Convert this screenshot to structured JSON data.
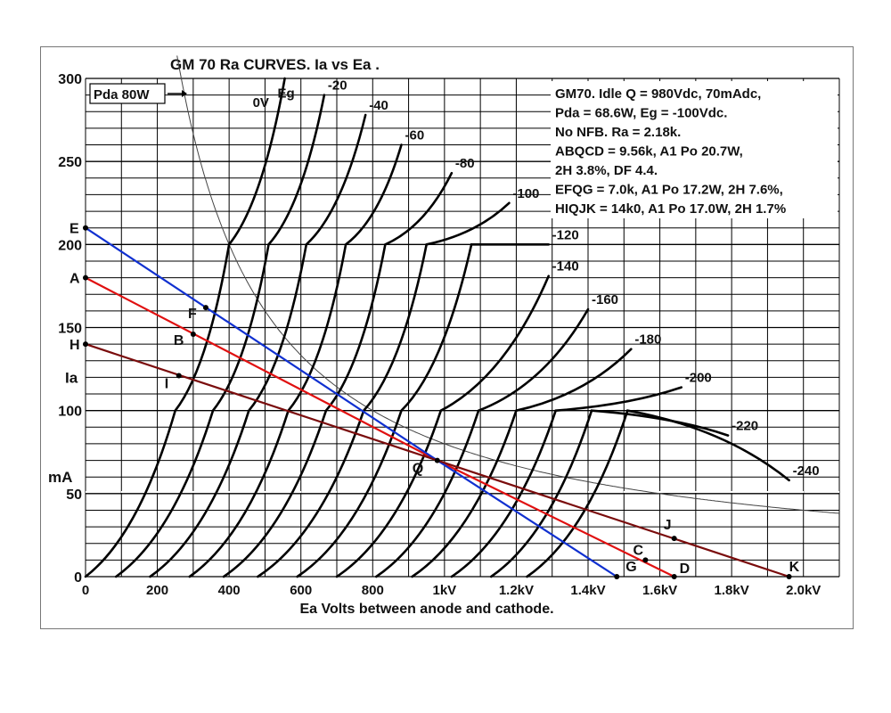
{
  "chart_data": {
    "type": "line",
    "title": "GM 70 Ra CURVES. Ia vs Ea .",
    "xlabel": "Ea Volts between anode and cathode.",
    "ylabel_parts": [
      "Ia",
      "mA"
    ],
    "xlim": [
      0,
      2100
    ],
    "ylim": [
      0,
      300
    ],
    "x_ticks": [
      {
        "v": 0,
        "label": "0"
      },
      {
        "v": 200,
        "label": "200"
      },
      {
        "v": 400,
        "label": "400"
      },
      {
        "v": 600,
        "label": "600"
      },
      {
        "v": 800,
        "label": "800"
      },
      {
        "v": 1000,
        "label": "1kV"
      },
      {
        "v": 1200,
        "label": "1.2kV"
      },
      {
        "v": 1400,
        "label": "1.4kV"
      },
      {
        "v": 1600,
        "label": "1.6kV"
      },
      {
        "v": 1800,
        "label": "1.8kV"
      },
      {
        "v": 2000,
        "label": "2.0kV"
      }
    ],
    "y_ticks": [
      {
        "v": 0,
        "label": "0"
      },
      {
        "v": 50,
        "label": "50"
      },
      {
        "v": 100,
        "label": "100"
      },
      {
        "v": 150,
        "label": "150"
      },
      {
        "v": 200,
        "label": "200"
      },
      {
        "v": 250,
        "label": "250"
      },
      {
        "v": 300,
        "label": "300"
      }
    ],
    "grid": true,
    "grid_x_step": 100,
    "grid_y_step": 10,
    "dotted_reference_y": 51,
    "grid_curves": [
      {
        "label": "0V",
        "eg": 0,
        "points": [
          [
            0,
            0
          ],
          [
            250,
            100
          ],
          [
            400,
            200
          ],
          [
            555,
            300
          ]
        ]
      },
      {
        "label": "-20",
        "eg": -20,
        "points": [
          [
            85,
            0
          ],
          [
            355,
            100
          ],
          [
            510,
            200
          ],
          [
            665,
            290
          ]
        ]
      },
      {
        "label": "-40",
        "eg": -40,
        "points": [
          [
            180,
            0
          ],
          [
            455,
            100
          ],
          [
            615,
            200
          ],
          [
            780,
            278
          ]
        ]
      },
      {
        "label": "-60",
        "eg": -60,
        "points": [
          [
            290,
            0
          ],
          [
            565,
            100
          ],
          [
            725,
            200
          ],
          [
            880,
            260
          ]
        ]
      },
      {
        "label": "-80",
        "eg": -80,
        "points": [
          [
            385,
            0
          ],
          [
            670,
            100
          ],
          [
            835,
            200
          ],
          [
            1020,
            243
          ]
        ]
      },
      {
        "label": "-100",
        "eg": -100,
        "points": [
          [
            480,
            0
          ],
          [
            775,
            100
          ],
          [
            950,
            200
          ],
          [
            1180,
            225
          ]
        ]
      },
      {
        "label": "-120",
        "eg": -120,
        "points": [
          [
            590,
            0
          ],
          [
            880,
            100
          ],
          [
            1075,
            200
          ],
          [
            1290,
            200
          ]
        ]
      },
      {
        "label": "-140",
        "eg": -140,
        "points": [
          [
            700,
            0
          ],
          [
            990,
            100
          ],
          [
            1290,
            181
          ]
        ]
      },
      {
        "label": "-160",
        "eg": -160,
        "points": [
          [
            810,
            0
          ],
          [
            1095,
            100
          ],
          [
            1400,
            161
          ]
        ]
      },
      {
        "label": "-180",
        "eg": -180,
        "points": [
          [
            910,
            0
          ],
          [
            1200,
            100
          ],
          [
            1520,
            137
          ]
        ]
      },
      {
        "label": "-200",
        "eg": -200,
        "points": [
          [
            1020,
            0
          ],
          [
            1310,
            100
          ],
          [
            1660,
            114
          ]
        ]
      },
      {
        "label": "-220",
        "eg": -220,
        "points": [
          [
            1130,
            0
          ],
          [
            1410,
            100
          ],
          [
            1790,
            85
          ]
        ]
      },
      {
        "label": "-240",
        "eg": -240,
        "points": [
          [
            1230,
            0
          ],
          [
            1510,
            100
          ],
          [
            1960,
            58
          ]
        ]
      }
    ],
    "grid_label_header": "Eg",
    "pda_curve": {
      "label": "Pda 80W",
      "watts": 80,
      "x_range": [
        255,
        2100
      ]
    },
    "load_lines": [
      {
        "name": "ABQCD",
        "color": "#e01010",
        "points": [
          [
            0,
            180
          ],
          [
            980,
            70
          ],
          [
            1640,
            0
          ]
        ],
        "start_label": "A",
        "end_label": "D"
      },
      {
        "name": "EFQG",
        "color": "#1030d0",
        "points": [
          [
            0,
            210
          ],
          [
            980,
            70
          ],
          [
            1480,
            0
          ]
        ],
        "start_label": "E",
        "end_label": "G"
      },
      {
        "name": "HIQJK",
        "color": "#7a0c0c",
        "points": [
          [
            0,
            140
          ],
          [
            980,
            70
          ],
          [
            1960,
            0
          ]
        ],
        "start_label": "H",
        "end_label": "K"
      }
    ],
    "points": [
      {
        "label": "A",
        "x": 0,
        "y": 180
      },
      {
        "label": "E",
        "x": 0,
        "y": 210
      },
      {
        "label": "H",
        "x": 0,
        "y": 140
      },
      {
        "label": "F",
        "x": 335,
        "y": 162
      },
      {
        "label": "B",
        "x": 300,
        "y": 146
      },
      {
        "label": "I",
        "x": 260,
        "y": 121
      },
      {
        "label": "Q",
        "x": 980,
        "y": 70
      },
      {
        "label": "C",
        "x": 1560,
        "y": 10
      },
      {
        "label": "G",
        "x": 1480,
        "y": 0
      },
      {
        "label": "D",
        "x": 1640,
        "y": 0
      },
      {
        "label": "J",
        "x": 1640,
        "y": 23
      },
      {
        "label": "K",
        "x": 1960,
        "y": 0
      }
    ],
    "annotations": [
      "GM70. Idle Q = 980Vdc, 70mAdc,",
      "Pda = 68.6W, Eg = -100Vdc.",
      "No NFB. Ra = 2.18k.",
      "ABQCD = 9.56k, A1 Po 20.7W,",
      "2H 3.8%, DF 4.4.",
      "EFQG = 7.0k, A1  Po 17.2W, 2H 7.6%,",
      "HIQJK = 14k0, A1 Po 17.0W, 2H 1.7%"
    ]
  },
  "colors": {
    "grid": "#000000",
    "curve": "#000000",
    "pda": "#444444",
    "background": "#ffffff"
  }
}
